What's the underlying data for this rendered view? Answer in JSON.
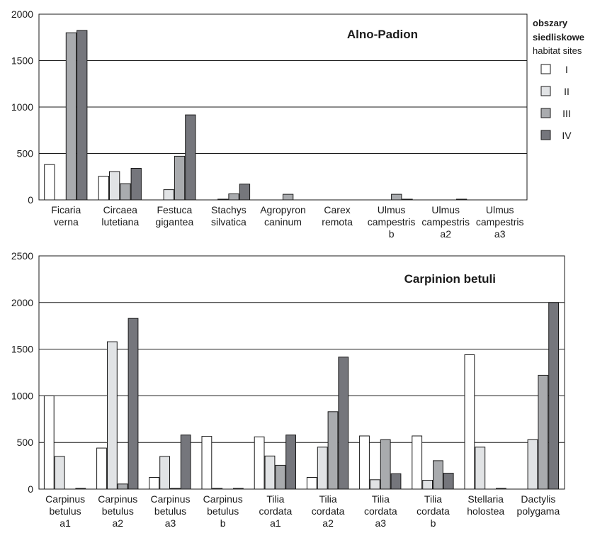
{
  "legend": {
    "title": "obszary siedliskowe",
    "subtitle": "habitat sites",
    "entries": [
      {
        "label": "I",
        "color": "#ffffff"
      },
      {
        "label": "II",
        "color": "#e1e3e5"
      },
      {
        "label": "III",
        "color": "#a9abae"
      },
      {
        "label": "IV",
        "color": "#75767c"
      }
    ]
  },
  "chart_data": [
    {
      "type": "bar",
      "title": "Alno-Padion",
      "xlabel": "",
      "ylabel": "",
      "ylim": [
        0,
        2000
      ],
      "yticks": [
        0,
        500,
        1000,
        1500,
        2000
      ],
      "grid": true,
      "legend_position": "right",
      "categories": [
        [
          "Ficaria",
          "verna"
        ],
        [
          "Circaea",
          "lutetiana"
        ],
        [
          "Festuca",
          "gigantea"
        ],
        [
          "Stachys",
          "silvatica"
        ],
        [
          "Agropyron",
          "caninum"
        ],
        [
          "Carex",
          "remota"
        ],
        [
          "Ulmus",
          "campestris",
          "b"
        ],
        [
          "Ulmus",
          "campestris",
          "a2"
        ],
        [
          "Ulmus",
          "campestris",
          "a3"
        ]
      ],
      "series": [
        {
          "name": "I",
          "values": [
            380,
            255,
            0,
            0,
            0,
            0,
            0,
            0,
            0
          ]
        },
        {
          "name": "II",
          "values": [
            0,
            305,
            110,
            5,
            0,
            0,
            0,
            0,
            0
          ]
        },
        {
          "name": "III",
          "values": [
            1800,
            175,
            470,
            65,
            60,
            0,
            60,
            0,
            0
          ]
        },
        {
          "name": "IV",
          "values": [
            1825,
            340,
            915,
            170,
            0,
            0,
            5,
            5,
            0
          ]
        }
      ]
    },
    {
      "type": "bar",
      "title": "Carpinion betuli",
      "xlabel": "",
      "ylabel": "",
      "ylim": [
        0,
        2500
      ],
      "yticks": [
        0,
        500,
        1000,
        1500,
        2000,
        2500
      ],
      "grid": true,
      "legend_position": "right",
      "categories": [
        [
          "Carpinus",
          "betulus",
          "a1"
        ],
        [
          "Carpinus",
          "betulus",
          "a2"
        ],
        [
          "Carpinus",
          "betulus",
          "a3"
        ],
        [
          "Carpinus",
          "betulus",
          "b"
        ],
        [
          "Tilia",
          "cordata",
          "a1"
        ],
        [
          "Tilia",
          "cordata",
          "a2"
        ],
        [
          "Tilia",
          "cordata",
          "a3"
        ],
        [
          "Tilia",
          "cordata",
          "b"
        ],
        [
          "Stellaria",
          "holostea"
        ],
        [
          "Dactylis",
          "polygama"
        ]
      ],
      "series": [
        {
          "name": "I",
          "values": [
            1000,
            440,
            125,
            565,
            560,
            125,
            570,
            570,
            1440,
            0
          ]
        },
        {
          "name": "II",
          "values": [
            350,
            1580,
            350,
            5,
            355,
            450,
            100,
            95,
            450,
            530
          ]
        },
        {
          "name": "III",
          "values": [
            0,
            55,
            5,
            0,
            255,
            830,
            530,
            305,
            0,
            1220
          ]
        },
        {
          "name": "IV",
          "values": [
            5,
            1830,
            580,
            5,
            580,
            1415,
            165,
            170,
            5,
            2000
          ]
        }
      ]
    }
  ]
}
